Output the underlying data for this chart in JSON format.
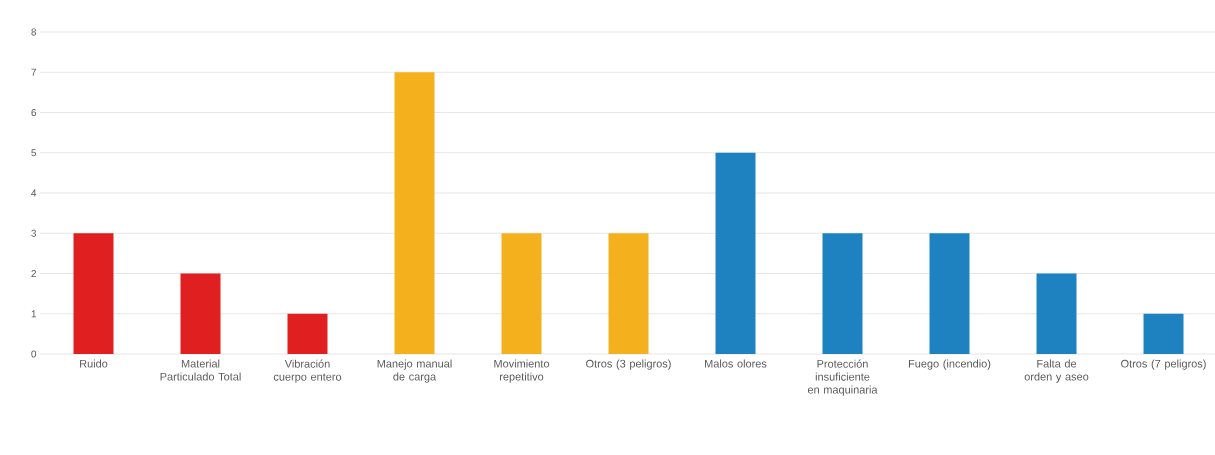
{
  "chart_data": {
    "type": "bar",
    "categories": [
      "Ruido",
      "Material Particulado Total",
      "Vibración cuerpo entero",
      "Manejo manual de carga",
      "Movimiento repetitivo",
      "Otros (3 peligros)",
      "Malos olores",
      "Protección insuficiente en maquinaria",
      "Fuego (incendio)",
      "Falta de orden y aseo",
      "Otros (7 peligros)"
    ],
    "values": [
      3,
      2,
      1,
      7,
      3,
      3,
      5,
      3,
      3,
      2,
      1
    ],
    "colors": [
      "#e02020",
      "#e02020",
      "#e02020",
      "#f5b01e",
      "#f5b01e",
      "#f5b01e",
      "#1f82c0",
      "#1f82c0",
      "#1f82c0",
      "#1f82c0",
      "#1f82c0"
    ],
    "ylim": [
      0,
      8
    ],
    "yticks": [
      0,
      1,
      2,
      3,
      4,
      5,
      6,
      7,
      8
    ],
    "grid": "y"
  }
}
